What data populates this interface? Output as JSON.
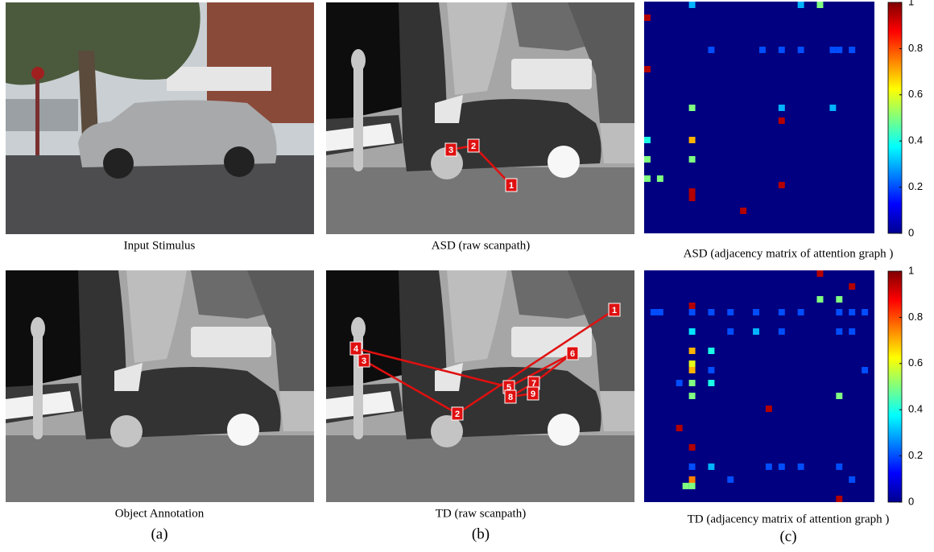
{
  "panels": {
    "input_caption": "Input Stimulus",
    "annotation_caption": "Object Annotation",
    "asd_scanpath": {
      "caption": "ASD (raw scanpath)",
      "fixations": [
        "1",
        "2",
        "3"
      ]
    },
    "td_scanpath": {
      "caption": "TD (raw scanpath)",
      "fixations": [
        "1",
        "2",
        "3",
        "4",
        "5",
        "6",
        "7",
        "8",
        "9"
      ]
    },
    "labels": [
      "(a)",
      "(b)",
      "(c)"
    ]
  },
  "asd_matrix": {
    "caption": "ASD (adjacency matrix of attention graph )",
    "size": 36,
    "cells": [
      [
        0,
        7,
        0.3
      ],
      [
        0,
        24,
        0.3
      ],
      [
        0,
        27,
        0.5
      ],
      [
        2,
        0,
        0.95
      ],
      [
        7,
        10,
        0.2
      ],
      [
        7,
        18,
        0.2
      ],
      [
        7,
        21,
        0.2
      ],
      [
        7,
        24,
        0.2
      ],
      [
        7,
        29,
        0.2
      ],
      [
        7,
        30,
        0.2
      ],
      [
        7,
        32,
        0.2
      ],
      [
        10,
        0,
        0.95
      ],
      [
        16,
        7,
        0.5
      ],
      [
        16,
        21,
        0.3
      ],
      [
        16,
        29,
        0.3
      ],
      [
        18,
        21,
        0.95
      ],
      [
        21,
        0,
        0.4
      ],
      [
        21,
        7,
        0.7
      ],
      [
        24,
        0,
        0.5
      ],
      [
        24,
        7,
        0.5
      ],
      [
        27,
        0,
        0.5
      ],
      [
        27,
        2,
        0.5
      ],
      [
        28,
        21,
        0.95
      ],
      [
        29,
        7,
        0.95
      ],
      [
        30,
        7,
        0.95
      ],
      [
        32,
        15,
        0.95
      ]
    ],
    "colorbar": {
      "ylim": [
        0,
        1
      ],
      "yticks": [
        0,
        0.2,
        0.4,
        0.6,
        0.8,
        1
      ]
    }
  },
  "td_matrix": {
    "caption": "TD (adjacency matrix of attention graph )",
    "size": 36,
    "cells": [
      [
        0,
        27,
        0.95
      ],
      [
        2,
        32,
        0.95
      ],
      [
        4,
        27,
        0.5
      ],
      [
        4,
        30,
        0.5
      ],
      [
        5,
        7,
        0.95
      ],
      [
        6,
        1,
        0.2
      ],
      [
        6,
        2,
        0.2
      ],
      [
        6,
        7,
        0.2
      ],
      [
        6,
        10,
        0.2
      ],
      [
        6,
        13,
        0.2
      ],
      [
        6,
        17,
        0.2
      ],
      [
        6,
        21,
        0.2
      ],
      [
        6,
        24,
        0.2
      ],
      [
        6,
        30,
        0.2
      ],
      [
        6,
        32,
        0.2
      ],
      [
        6,
        34,
        0.2
      ],
      [
        9,
        7,
        0.35
      ],
      [
        9,
        13,
        0.2
      ],
      [
        9,
        17,
        0.3
      ],
      [
        9,
        21,
        0.2
      ],
      [
        9,
        30,
        0.2
      ],
      [
        9,
        32,
        0.2
      ],
      [
        12,
        7,
        0.7
      ],
      [
        12,
        10,
        0.4
      ],
      [
        14,
        7,
        0.6
      ],
      [
        15,
        7,
        0.7
      ],
      [
        15,
        10,
        0.2
      ],
      [
        15,
        34,
        0.2
      ],
      [
        17,
        5,
        0.2
      ],
      [
        17,
        7,
        0.5
      ],
      [
        17,
        10,
        0.4
      ],
      [
        19,
        7,
        0.5
      ],
      [
        19,
        30,
        0.5
      ],
      [
        21,
        19,
        0.95
      ],
      [
        24,
        5,
        0.95
      ],
      [
        27,
        7,
        0.95
      ],
      [
        30,
        7,
        0.2
      ],
      [
        30,
        10,
        0.3
      ],
      [
        30,
        19,
        0.2
      ],
      [
        30,
        21,
        0.2
      ],
      [
        30,
        24,
        0.2
      ],
      [
        30,
        30,
        0.2
      ],
      [
        32,
        13,
        0.2
      ],
      [
        32,
        32,
        0.2
      ],
      [
        32,
        7,
        0.75
      ],
      [
        33,
        6,
        0.5
      ],
      [
        33,
        7,
        0.5
      ],
      [
        35,
        30,
        0.95
      ]
    ],
    "colorbar": {
      "ylim": [
        0,
        1
      ],
      "yticks": [
        0,
        0.2,
        0.4,
        0.6,
        0.8,
        1
      ]
    }
  }
}
